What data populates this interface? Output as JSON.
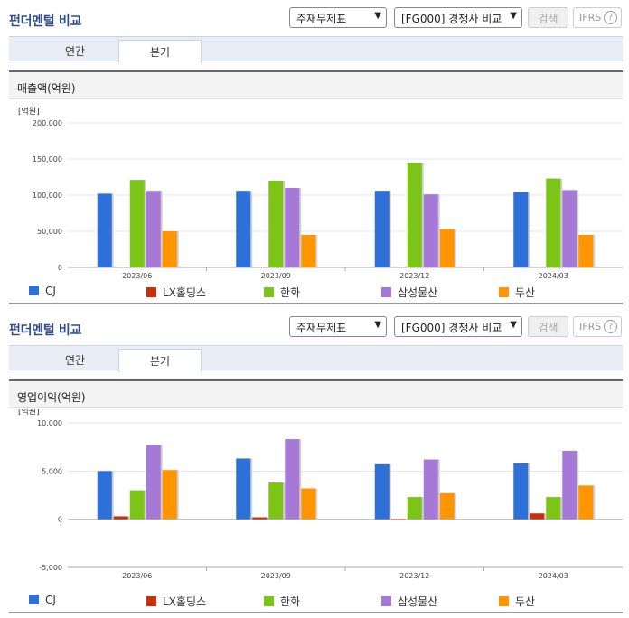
{
  "toolbar": {
    "title": "펀더멘털 비교",
    "select_statement": "주재무제표",
    "select_compare": "[FG000] 경쟁사 비교",
    "search_label": "검색",
    "ifrs_label": "IFRS",
    "help_label": "?"
  },
  "tabs": [
    {
      "label": "연간"
    },
    {
      "label": "분기"
    }
  ],
  "colors": {
    "CJ": "#2f6fd8",
    "LX홀딩스": "#c8300c",
    "한화": "#7cc416",
    "삼성물산": "#a779d6",
    "두산": "#ff9500"
  },
  "charts": [
    {
      "heading": "매출액(억원)",
      "chart_data": {
        "type": "bar",
        "unit_label": "[억원]",
        "categories": [
          "2023/06",
          "2023/09",
          "2023/12",
          "2024/03"
        ],
        "ylim": [
          0,
          200000
        ],
        "yticks": [
          "200,000",
          "150,000",
          "100,000",
          "50,000",
          "0"
        ],
        "ytick_values": [
          200000,
          150000,
          100000,
          50000,
          0
        ],
        "series": [
          {
            "name": "CJ",
            "values": [
              102000,
              106000,
              106000,
              104000
            ]
          },
          {
            "name": "LX홀딩스",
            "values": [
              0,
              0,
              0,
              0
            ]
          },
          {
            "name": "한화",
            "values": [
              121000,
              120000,
              145000,
              123000
            ]
          },
          {
            "name": "삼성물산",
            "values": [
              106000,
              110000,
              101000,
              107000
            ]
          },
          {
            "name": "두산",
            "values": [
              50000,
              45000,
              53000,
              45000
            ]
          }
        ]
      }
    },
    {
      "heading": "영업이익(억원)",
      "chart_data": {
        "type": "bar",
        "unit_label": "[억원]",
        "categories": [
          "2023/06",
          "2023/09",
          "2023/12",
          "2024/03"
        ],
        "ylim": [
          -5000,
          10000
        ],
        "yticks": [
          "10,000",
          "5,000",
          "0",
          "-5,000"
        ],
        "ytick_values": [
          10000,
          5000,
          0,
          -5000
        ],
        "series": [
          {
            "name": "CJ",
            "values": [
              5000,
              6300,
              5700,
              5800
            ]
          },
          {
            "name": "LX홀딩스",
            "values": [
              300,
              200,
              -100,
              600
            ]
          },
          {
            "name": "한화",
            "values": [
              3000,
              3800,
              2300,
              2300
            ]
          },
          {
            "name": "삼성물산",
            "values": [
              7700,
              8300,
              6200,
              7100
            ]
          },
          {
            "name": "두산",
            "values": [
              5100,
              3200,
              2700,
              3500
            ]
          }
        ]
      }
    }
  ]
}
